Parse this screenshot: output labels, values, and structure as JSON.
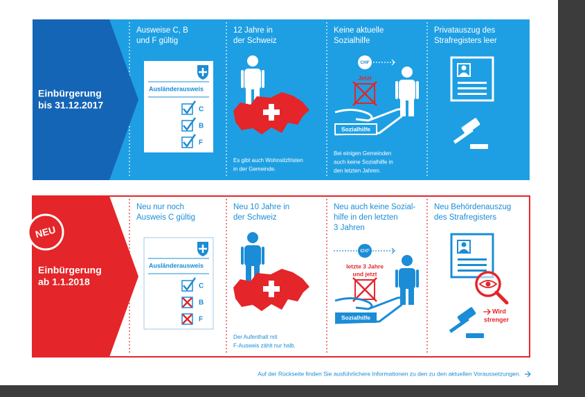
{
  "panels": [
    {
      "heading": [
        "Einbürgerung",
        "bis 31.12.2017"
      ],
      "columns": [
        {
          "title": [
            "Ausweise C, B",
            "und F gültig"
          ],
          "card_title": "Ausländerausweis",
          "checks": [
            "C",
            "B",
            "F"
          ]
        },
        {
          "title": [
            "12 Jahre in",
            "der Schweiz"
          ],
          "note": [
            "Es gibt auch Wohnsitzfristen",
            "in der Gemeinde."
          ]
        },
        {
          "title": [
            "Keine aktuelle",
            "Sozialhilfe"
          ],
          "currency": "CHF",
          "stamp": [
            "Jetzt"
          ],
          "hand_label": "Sozialhilfe",
          "note": [
            "Bei einigen Gemeinden",
            "auch keine Sozialhilfe in",
            "den letzten Jahren."
          ]
        },
        {
          "title": [
            "Privatauszug des",
            "Strafregisters leer"
          ]
        }
      ]
    },
    {
      "badge": "NEU",
      "heading": [
        "Einbürgerung",
        "ab 1.1.2018"
      ],
      "columns": [
        {
          "title": [
            "Neu nur noch",
            "Ausweis C gültig"
          ],
          "card_title": "Ausländerausweis",
          "checks": [
            "C",
            "B",
            "F"
          ]
        },
        {
          "title": [
            "Neu 10 Jahre in",
            "der Schweiz"
          ],
          "note": [
            "Der Aufenthalt mit",
            "F-Ausweis zählt nur halb."
          ]
        },
        {
          "title": [
            "Neu auch keine Sozial-",
            "hilfe in den letzten",
            "3 Jahren"
          ],
          "currency": "CHF",
          "stamp": [
            "letzte 3 Jahre",
            "und jetzt"
          ],
          "hand_label": "Sozialhilfe"
        },
        {
          "title": [
            "Neu Behördenauszug",
            "des Strafregisters"
          ],
          "annotation": [
            "Wird",
            "strenger"
          ]
        }
      ]
    }
  ],
  "footer": "Auf der Rückseite finden Sie ausführlichere Informationen zu den zu den aktuellen Voraussetzungen."
}
